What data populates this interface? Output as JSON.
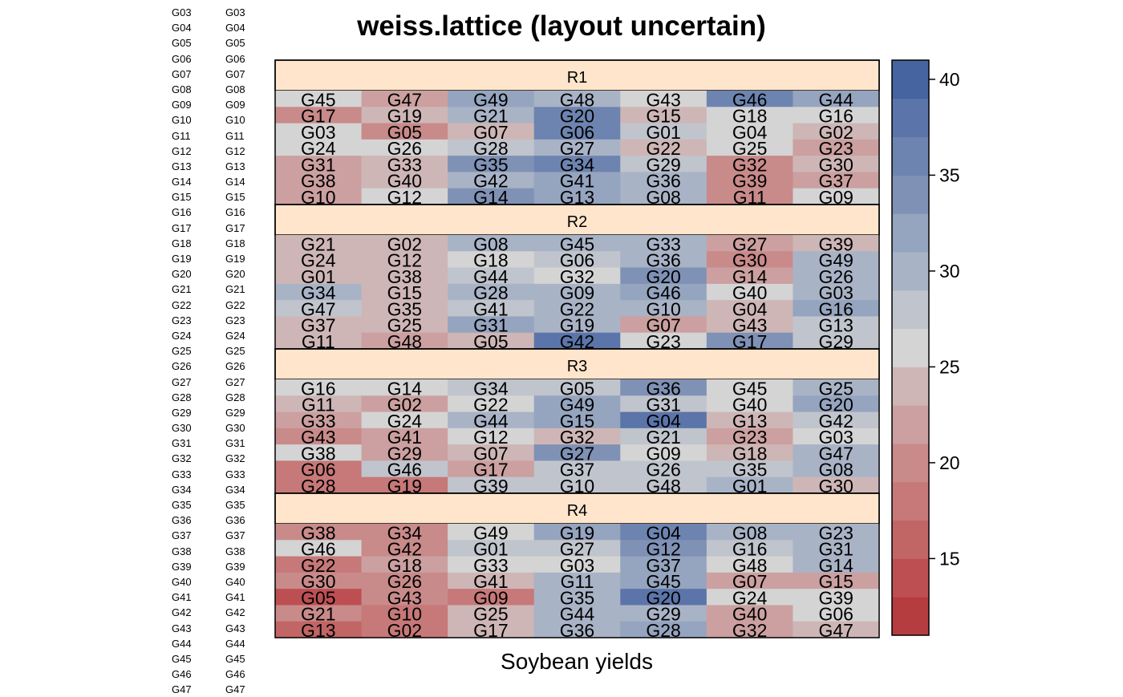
{
  "left_labels": [
    "G03",
    "G04",
    "G05",
    "G06",
    "G07",
    "G08",
    "G09",
    "G10",
    "G11",
    "G12",
    "G13",
    "G14",
    "G15",
    "G16",
    "G17",
    "G18",
    "G19",
    "G20",
    "G21",
    "G22",
    "G23",
    "G24",
    "G25",
    "G26",
    "G27",
    "G28",
    "G29",
    "G30",
    "G31",
    "G32",
    "G33",
    "G34",
    "G35",
    "G36",
    "G37",
    "G38",
    "G39",
    "G40",
    "G41",
    "G42",
    "G43",
    "G44",
    "G45",
    "G46",
    "G47"
  ],
  "chart_data": {
    "type": "heatmap",
    "title": "weiss.lattice (layout uncertain)",
    "xlabel": "Soybean yields",
    "panels": [
      {
        "name": "R1",
        "labels": [
          [
            "G45",
            "G47",
            "G49",
            "G48",
            "G43",
            "G46",
            "G44"
          ],
          [
            "G17",
            "G19",
            "G21",
            "G20",
            "G15",
            "G18",
            "G16"
          ],
          [
            "G03",
            "G05",
            "G07",
            "G06",
            "G01",
            "G04",
            "G02"
          ],
          [
            "G24",
            "G26",
            "G28",
            "G27",
            "G22",
            "G25",
            "G23"
          ],
          [
            "G31",
            "G33",
            "G35",
            "G34",
            "G29",
            "G32",
            "G30"
          ],
          [
            "G38",
            "G40",
            "G42",
            "G41",
            "G36",
            "G39",
            "G37"
          ],
          [
            "G10",
            "G12",
            "G14",
            "G13",
            "G08",
            "G11",
            "G09"
          ]
        ],
        "values": [
          [
            26,
            22,
            32,
            30,
            26,
            35,
            31
          ],
          [
            19,
            23,
            30,
            35,
            24,
            26,
            25
          ],
          [
            25,
            20,
            23,
            36,
            28,
            26,
            23
          ],
          [
            25,
            25,
            28,
            30,
            23,
            25,
            21
          ],
          [
            22,
            23,
            33,
            35,
            28,
            19,
            23
          ],
          [
            22,
            23,
            29,
            31,
            30,
            19,
            22
          ],
          [
            22,
            25,
            34,
            31,
            30,
            19,
            25
          ]
        ]
      },
      {
        "name": "R2",
        "labels": [
          [
            "G21",
            "G02",
            "G08",
            "G45",
            "G33",
            "G27",
            "G39"
          ],
          [
            "G24",
            "G12",
            "G18",
            "G06",
            "G36",
            "G30",
            "G49"
          ],
          [
            "G01",
            "G38",
            "G44",
            "G32",
            "G20",
            "G14",
            "G26"
          ],
          [
            "G34",
            "G15",
            "G28",
            "G09",
            "G46",
            "G40",
            "G03"
          ],
          [
            "G47",
            "G35",
            "G41",
            "G22",
            "G10",
            "G04",
            "G16"
          ],
          [
            "G37",
            "G25",
            "G31",
            "G19",
            "G07",
            "G43",
            "G13"
          ],
          [
            "G11",
            "G48",
            "G05",
            "G42",
            "G23",
            "G17",
            "G29"
          ]
        ],
        "values": [
          [
            23,
            23,
            29,
            30,
            30,
            21,
            23
          ],
          [
            23,
            23,
            25,
            28,
            30,
            20,
            29
          ],
          [
            23,
            23,
            28,
            26,
            33,
            22,
            29
          ],
          [
            29,
            23,
            30,
            29,
            31,
            26,
            29
          ],
          [
            28,
            23,
            27,
            30,
            30,
            23,
            31
          ],
          [
            23,
            23,
            31,
            29,
            21,
            23,
            27
          ],
          [
            24,
            21,
            23,
            37,
            26,
            33,
            27
          ]
        ]
      },
      {
        "name": "R3",
        "labels": [
          [
            "G16",
            "G14",
            "G34",
            "G05",
            "G36",
            "G45",
            "G25"
          ],
          [
            "G11",
            "G02",
            "G22",
            "G49",
            "G31",
            "G40",
            "G20"
          ],
          [
            "G33",
            "G24",
            "G44",
            "G15",
            "G04",
            "G13",
            "G42"
          ],
          [
            "G43",
            "G41",
            "G12",
            "G32",
            "G21",
            "G23",
            "G03"
          ],
          [
            "G38",
            "G29",
            "G07",
            "G27",
            "G09",
            "G18",
            "G47"
          ],
          [
            "G06",
            "G46",
            "G17",
            "G37",
            "G26",
            "G35",
            "G08"
          ],
          [
            "G28",
            "G19",
            "G39",
            "G10",
            "G48",
            "G01",
            "G30"
          ]
        ],
        "values": [
          [
            26,
            25,
            28,
            27,
            33,
            26,
            29
          ],
          [
            23,
            21,
            25,
            31,
            28,
            25,
            32
          ],
          [
            22,
            25,
            29,
            32,
            37,
            23,
            28
          ],
          [
            19,
            21,
            26,
            24,
            27,
            21,
            25
          ],
          [
            25,
            21,
            24,
            33,
            26,
            24,
            29
          ],
          [
            18,
            27,
            21,
            28,
            28,
            27,
            30
          ],
          [
            17,
            17,
            27,
            27,
            27,
            30,
            23
          ]
        ]
      },
      {
        "name": "R4",
        "labels": [
          [
            "G38",
            "G34",
            "G49",
            "G19",
            "G04",
            "G08",
            "G23"
          ],
          [
            "G46",
            "G42",
            "G01",
            "G27",
            "G12",
            "G16",
            "G31"
          ],
          [
            "G22",
            "G18",
            "G33",
            "G03",
            "G37",
            "G48",
            "G14"
          ],
          [
            "G30",
            "G26",
            "G41",
            "G11",
            "G45",
            "G07",
            "G15"
          ],
          [
            "G05",
            "G43",
            "G09",
            "G35",
            "G20",
            "G24",
            "G39"
          ],
          [
            "G21",
            "G10",
            "G25",
            "G44",
            "G29",
            "G40",
            "G06"
          ],
          [
            "G13",
            "G02",
            "G17",
            "G36",
            "G28",
            "G32",
            "G47"
          ]
        ],
        "values": [
          [
            19,
            19,
            26,
            32,
            36,
            29,
            29
          ],
          [
            25,
            19,
            27,
            27,
            33,
            28,
            29
          ],
          [
            18,
            21,
            25,
            25,
            31,
            26,
            29
          ],
          [
            20,
            20,
            23,
            30,
            31,
            22,
            22
          ],
          [
            14,
            19,
            17,
            30,
            38,
            25,
            25
          ],
          [
            19,
            18,
            23,
            30,
            29,
            22,
            25
          ],
          [
            15,
            18,
            23,
            30,
            32,
            21,
            23
          ]
        ]
      }
    ],
    "colorkey": {
      "breaks": [
        11,
        13,
        15,
        17,
        19,
        21,
        23,
        25,
        27,
        29,
        31,
        33,
        35,
        37,
        39,
        41
      ],
      "colors": [
        "#b53c3f",
        "#bd4f52",
        "#c26565",
        "#c77878",
        "#c98a8a",
        "#cca0a0",
        "#ceb6b6",
        "#d4d4d4",
        "#c0c4cc",
        "#a9b3c6",
        "#95a4bf",
        "#7f91b5",
        "#6d84b0",
        "#5b75aa",
        "#46649f",
        "#2f5798"
      ],
      "ticks": [
        15,
        20,
        25,
        30,
        35,
        40
      ]
    }
  }
}
